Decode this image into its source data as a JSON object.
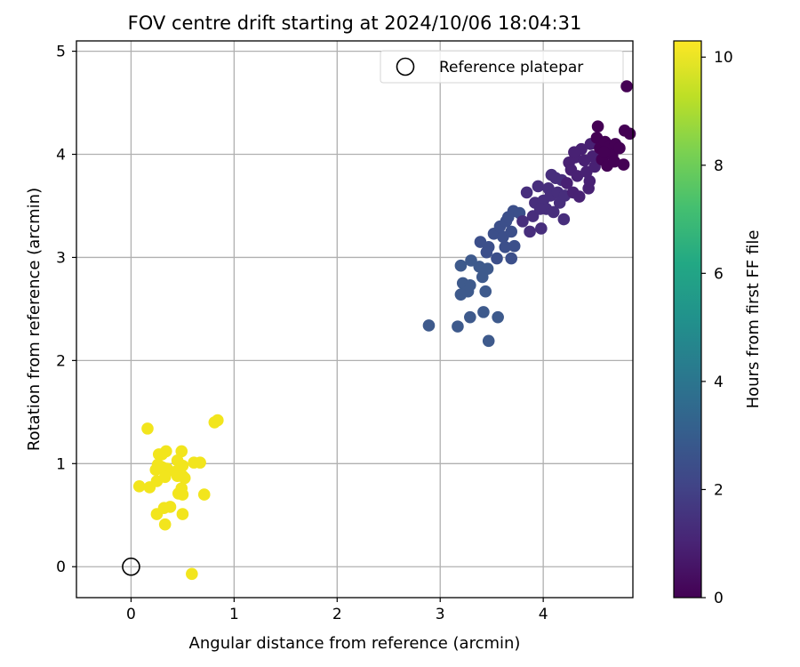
{
  "chart_data": {
    "type": "scatter",
    "title": "FOV centre drift starting at 2024/10/06 18:04:31",
    "xlabel": "Angular distance from reference (arcmin)",
    "ylabel": "Rotation from reference (arcmin)",
    "xlim": [
      -0.53,
      4.87
    ],
    "ylim": [
      -0.3,
      5.1
    ],
    "xticks": [
      "0",
      "1",
      "2",
      "3",
      "4"
    ],
    "yticks": [
      "0",
      "1",
      "2",
      "3",
      "4",
      "5"
    ],
    "grid": true,
    "legend": {
      "position": "top-right",
      "entries": [
        "Reference platepar"
      ]
    },
    "reference_point": {
      "x": 0,
      "y": 0,
      "marker": "open-circle"
    },
    "colorbar": {
      "label": "Hours from first FF file",
      "colormap": "viridis",
      "range": [
        0,
        10.3
      ],
      "ticks": [
        "0",
        "2",
        "4",
        "6",
        "8",
        "10"
      ]
    },
    "series": [
      {
        "hours_approx": 10.2,
        "color": "#f2e51d",
        "points": [
          [
            0.16,
            1.34
          ],
          [
            0.27,
            1.09
          ],
          [
            0.34,
            1.12
          ],
          [
            0.3,
            1.09
          ],
          [
            0.49,
            1.12
          ],
          [
            0.45,
            1.03
          ],
          [
            0.5,
            0.98
          ],
          [
            0.26,
            0.99
          ],
          [
            0.31,
            0.96
          ],
          [
            0.35,
            0.95
          ],
          [
            0.24,
            0.94
          ],
          [
            0.29,
            0.97
          ],
          [
            0.43,
            0.92
          ],
          [
            0.5,
            0.88
          ],
          [
            0.61,
            1.01
          ],
          [
            0.67,
            1.01
          ],
          [
            0.08,
            0.78
          ],
          [
            0.18,
            0.77
          ],
          [
            0.25,
            0.83
          ],
          [
            0.33,
            0.87
          ],
          [
            0.45,
            0.88
          ],
          [
            0.49,
            0.76
          ],
          [
            0.52,
            0.86
          ],
          [
            0.46,
            0.71
          ],
          [
            0.5,
            0.7
          ],
          [
            0.71,
            0.7
          ],
          [
            0.32,
            0.57
          ],
          [
            0.38,
            0.58
          ],
          [
            0.25,
            0.51
          ],
          [
            0.5,
            0.51
          ],
          [
            0.33,
            0.41
          ],
          [
            0.81,
            1.4
          ],
          [
            0.84,
            1.42
          ],
          [
            0.59,
            -0.07
          ]
        ]
      },
      {
        "hours_approx": 2.8,
        "color": "#3e5a8c",
        "points": [
          [
            2.89,
            2.34
          ],
          [
            3.17,
            2.33
          ],
          [
            3.29,
            2.42
          ],
          [
            3.42,
            2.47
          ],
          [
            3.56,
            2.42
          ],
          [
            3.47,
            2.19
          ],
          [
            3.2,
            2.92
          ],
          [
            3.3,
            2.97
          ],
          [
            3.22,
            2.75
          ],
          [
            3.29,
            2.73
          ],
          [
            3.27,
            2.67
          ],
          [
            3.2,
            2.64
          ],
          [
            3.38,
            2.91
          ],
          [
            3.41,
            2.81
          ],
          [
            3.46,
            2.89
          ],
          [
            3.44,
            2.67
          ]
        ]
      },
      {
        "hours_approx": 2.0,
        "color": "#3c4f8a",
        "points": [
          [
            3.39,
            3.15
          ],
          [
            3.47,
            3.1
          ],
          [
            3.52,
            3.23
          ],
          [
            3.45,
            3.05
          ],
          [
            3.55,
            2.99
          ],
          [
            3.58,
            3.3
          ],
          [
            3.61,
            3.2
          ],
          [
            3.64,
            3.35
          ],
          [
            3.63,
            3.1
          ],
          [
            3.71,
            3.45
          ],
          [
            3.69,
            2.99
          ],
          [
            3.72,
            3.11
          ],
          [
            3.66,
            3.39
          ],
          [
            3.77,
            3.43
          ],
          [
            3.69,
            3.25
          ]
        ]
      },
      {
        "hours_approx": 1.3,
        "color": "#472e7c",
        "points": [
          [
            3.8,
            3.35
          ],
          [
            3.84,
            3.63
          ],
          [
            3.87,
            3.25
          ],
          [
            3.9,
            3.4
          ],
          [
            3.92,
            3.53
          ],
          [
            3.95,
            3.69
          ],
          [
            3.98,
            3.28
          ],
          [
            4.0,
            3.55
          ],
          [
            4.03,
            3.47
          ],
          [
            4.05,
            3.67
          ],
          [
            4.07,
            3.6
          ],
          [
            4.1,
            3.44
          ],
          [
            4.12,
            3.77
          ],
          [
            4.14,
            3.63
          ],
          [
            4.16,
            3.53
          ],
          [
            4.18,
            3.75
          ],
          [
            4.2,
            3.37
          ],
          [
            4.21,
            3.6
          ],
          [
            4.08,
            3.8
          ],
          [
            3.97,
            3.47
          ]
        ]
      },
      {
        "hours_approx": 0.6,
        "color": "#482173",
        "points": [
          [
            4.23,
            3.72
          ],
          [
            4.25,
            3.92
          ],
          [
            4.27,
            3.85
          ],
          [
            4.29,
            3.63
          ],
          [
            4.31,
            3.97
          ],
          [
            4.33,
            3.79
          ],
          [
            4.35,
            3.59
          ],
          [
            4.37,
            4.05
          ],
          [
            4.4,
            3.94
          ],
          [
            4.42,
            3.83
          ],
          [
            4.44,
            3.67
          ],
          [
            4.46,
            4.1
          ],
          [
            4.48,
            3.98
          ],
          [
            4.5,
            3.88
          ],
          [
            4.3,
            4.02
          ],
          [
            4.45,
            3.74
          ]
        ]
      },
      {
        "hours_approx": 0.1,
        "color": "#440154",
        "points": [
          [
            4.52,
            4.16
          ],
          [
            4.55,
            4.06
          ],
          [
            4.57,
            3.95
          ],
          [
            4.6,
            4.12
          ],
          [
            4.62,
            3.89
          ],
          [
            4.64,
            4.07
          ],
          [
            4.67,
            3.99
          ],
          [
            4.7,
            4.1
          ],
          [
            4.74,
            4.06
          ],
          [
            4.78,
            3.9
          ],
          [
            4.79,
            4.23
          ],
          [
            4.84,
            4.2
          ],
          [
            4.81,
            4.66
          ],
          [
            4.53,
            4.27
          ],
          [
            4.59,
            4.02
          ],
          [
            4.69,
            3.93
          ]
        ]
      }
    ]
  }
}
